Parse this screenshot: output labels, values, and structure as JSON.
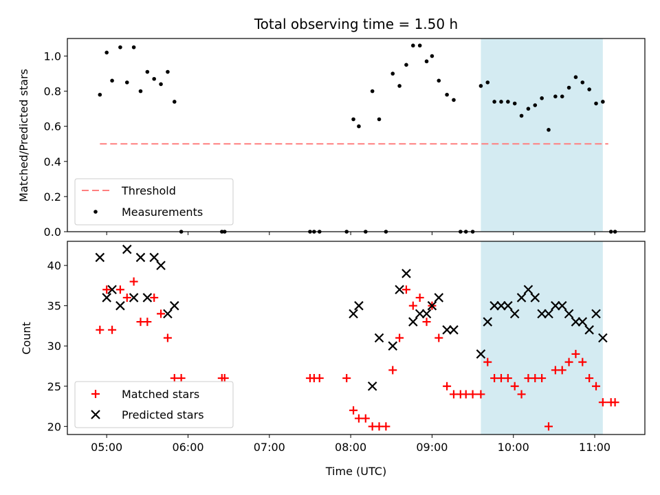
{
  "chart_data": [
    {
      "type": "scatter",
      "title": "Total observing time = 1.50 h",
      "ylabel": "Matched/Predicted stars",
      "xlabel": "",
      "xlim": [
        "04:31",
        "11:37"
      ],
      "ylim": [
        0,
        1.1
      ],
      "x_ticks": [
        "05:00",
        "06:00",
        "07:00",
        "08:00",
        "09:00",
        "10:00",
        "11:00"
      ],
      "y_ticks": [
        "0.0",
        "0.2",
        "0.4",
        "0.6",
        "0.8",
        "1.0"
      ],
      "shaded_region": {
        "start": "09:36",
        "end": "11:06",
        "color": "#add8e6"
      },
      "legend_placement": "lower-left",
      "threshold": {
        "name": "Threshold",
        "y": 0.5,
        "x_start": "04:55",
        "x_end": "11:10",
        "color": "#ff7f7f",
        "style": "dashed"
      },
      "series": [
        {
          "name": "Measurements",
          "color": "#000000",
          "marker": "dot",
          "points": [
            [
              "04:55",
              0.78
            ],
            [
              "05:00",
              1.02
            ],
            [
              "05:04",
              0.86
            ],
            [
              "05:10",
              1.05
            ],
            [
              "05:15",
              0.85
            ],
            [
              "05:20",
              1.05
            ],
            [
              "05:25",
              0.8
            ],
            [
              "05:30",
              0.91
            ],
            [
              "05:35",
              0.87
            ],
            [
              "05:40",
              0.84
            ],
            [
              "05:45",
              0.91
            ],
            [
              "05:50",
              0.74
            ],
            [
              "05:55",
              0.0
            ],
            [
              "06:25",
              0.0
            ],
            [
              "06:27",
              0.0
            ],
            [
              "07:30",
              0.0
            ],
            [
              "07:33",
              0.0
            ],
            [
              "07:37",
              0.0
            ],
            [
              "07:57",
              0.0
            ],
            [
              "08:02",
              0.64
            ],
            [
              "08:06",
              0.6
            ],
            [
              "08:11",
              0.0
            ],
            [
              "08:16",
              0.8
            ],
            [
              "08:21",
              0.64
            ],
            [
              "08:26",
              0.0
            ],
            [
              "08:31",
              0.9
            ],
            [
              "08:36",
              0.83
            ],
            [
              "08:41",
              0.95
            ],
            [
              "08:46",
              1.06
            ],
            [
              "08:51",
              1.06
            ],
            [
              "08:56",
              0.97
            ],
            [
              "09:00",
              1.0
            ],
            [
              "09:05",
              0.86
            ],
            [
              "09:11",
              0.78
            ],
            [
              "09:16",
              0.75
            ],
            [
              "09:21",
              0.0
            ],
            [
              "09:25",
              0.0
            ],
            [
              "09:30",
              0.0
            ],
            [
              "09:36",
              0.83
            ],
            [
              "09:41",
              0.85
            ],
            [
              "09:46",
              0.74
            ],
            [
              "09:51",
              0.74
            ],
            [
              "09:56",
              0.74
            ],
            [
              "10:01",
              0.73
            ],
            [
              "10:06",
              0.66
            ],
            [
              "10:11",
              0.7
            ],
            [
              "10:16",
              0.72
            ],
            [
              "10:21",
              0.76
            ],
            [
              "10:26",
              0.58
            ],
            [
              "10:31",
              0.77
            ],
            [
              "10:36",
              0.77
            ],
            [
              "10:41",
              0.82
            ],
            [
              "10:46",
              0.88
            ],
            [
              "10:51",
              0.85
            ],
            [
              "10:56",
              0.81
            ],
            [
              "11:01",
              0.73
            ],
            [
              "11:06",
              0.74
            ],
            [
              "11:12",
              0.0
            ],
            [
              "11:15",
              0.0
            ]
          ]
        }
      ]
    },
    {
      "type": "scatter",
      "title": "",
      "ylabel": "Count",
      "xlabel": "Time (UTC)",
      "xlim": [
        "04:31",
        "11:37"
      ],
      "ylim": [
        19,
        43
      ],
      "x_ticks": [
        "05:00",
        "06:00",
        "07:00",
        "08:00",
        "09:00",
        "10:00",
        "11:00"
      ],
      "y_ticks": [
        "20",
        "25",
        "30",
        "35",
        "40"
      ],
      "shaded_region": {
        "start": "09:36",
        "end": "11:06",
        "color": "#add8e6"
      },
      "legend_placement": "lower-left",
      "series": [
        {
          "name": "Matched stars",
          "color": "#ff0000",
          "marker": "plus",
          "points": [
            [
              "04:55",
              32
            ],
            [
              "05:00",
              37
            ],
            [
              "05:04",
              32
            ],
            [
              "05:10",
              37
            ],
            [
              "05:15",
              36
            ],
            [
              "05:20",
              38
            ],
            [
              "05:25",
              33
            ],
            [
              "05:30",
              33
            ],
            [
              "05:35",
              36
            ],
            [
              "05:40",
              34
            ],
            [
              "05:45",
              31
            ],
            [
              "05:50",
              26
            ],
            [
              "05:55",
              26
            ],
            [
              "06:25",
              26
            ],
            [
              "06:27",
              26
            ],
            [
              "07:30",
              26
            ],
            [
              "07:33",
              26
            ],
            [
              "07:37",
              26
            ],
            [
              "07:57",
              26
            ],
            [
              "08:02",
              22
            ],
            [
              "08:06",
              21
            ],
            [
              "08:11",
              21
            ],
            [
              "08:16",
              20
            ],
            [
              "08:21",
              20
            ],
            [
              "08:26",
              20
            ],
            [
              "08:31",
              27
            ],
            [
              "08:36",
              31
            ],
            [
              "08:41",
              37
            ],
            [
              "08:46",
              35
            ],
            [
              "08:51",
              36
            ],
            [
              "08:56",
              33
            ],
            [
              "09:00",
              35
            ],
            [
              "09:05",
              31
            ],
            [
              "09:11",
              25
            ],
            [
              "09:16",
              24
            ],
            [
              "09:21",
              24
            ],
            [
              "09:25",
              24
            ],
            [
              "09:30",
              24
            ],
            [
              "09:36",
              24
            ],
            [
              "09:41",
              28
            ],
            [
              "09:46",
              26
            ],
            [
              "09:51",
              26
            ],
            [
              "09:56",
              26
            ],
            [
              "10:01",
              25
            ],
            [
              "10:06",
              24
            ],
            [
              "10:11",
              26
            ],
            [
              "10:16",
              26
            ],
            [
              "10:21",
              26
            ],
            [
              "10:26",
              20
            ],
            [
              "10:31",
              27
            ],
            [
              "10:36",
              27
            ],
            [
              "10:41",
              28
            ],
            [
              "10:46",
              29
            ],
            [
              "10:51",
              28
            ],
            [
              "10:56",
              26
            ],
            [
              "11:01",
              25
            ],
            [
              "11:06",
              23
            ],
            [
              "11:12",
              23
            ],
            [
              "11:15",
              23
            ]
          ]
        },
        {
          "name": "Predicted stars",
          "color": "#000000",
          "marker": "x",
          "points": [
            [
              "04:55",
              41
            ],
            [
              "05:00",
              36
            ],
            [
              "05:04",
              37
            ],
            [
              "05:10",
              35
            ],
            [
              "05:15",
              42
            ],
            [
              "05:20",
              36
            ],
            [
              "05:25",
              41
            ],
            [
              "05:30",
              36
            ],
            [
              "05:35",
              41
            ],
            [
              "05:40",
              40
            ],
            [
              "05:45",
              34
            ],
            [
              "05:50",
              35
            ],
            [
              "08:02",
              34
            ],
            [
              "08:06",
              35
            ],
            [
              "08:16",
              25
            ],
            [
              "08:21",
              31
            ],
            [
              "08:31",
              30
            ],
            [
              "08:36",
              37
            ],
            [
              "08:41",
              39
            ],
            [
              "08:46",
              33
            ],
            [
              "08:51",
              34
            ],
            [
              "08:56",
              34
            ],
            [
              "09:00",
              35
            ],
            [
              "09:05",
              36
            ],
            [
              "09:11",
              32
            ],
            [
              "09:16",
              32
            ],
            [
              "09:36",
              29
            ],
            [
              "09:41",
              33
            ],
            [
              "09:46",
              35
            ],
            [
              "09:51",
              35
            ],
            [
              "09:56",
              35
            ],
            [
              "10:01",
              34
            ],
            [
              "10:06",
              36
            ],
            [
              "10:11",
              37
            ],
            [
              "10:16",
              36
            ],
            [
              "10:21",
              34
            ],
            [
              "10:26",
              34
            ],
            [
              "10:31",
              35
            ],
            [
              "10:36",
              35
            ],
            [
              "10:41",
              34
            ],
            [
              "10:46",
              33
            ],
            [
              "10:51",
              33
            ],
            [
              "10:56",
              32
            ],
            [
              "11:01",
              34
            ],
            [
              "11:06",
              31
            ]
          ]
        }
      ]
    }
  ]
}
